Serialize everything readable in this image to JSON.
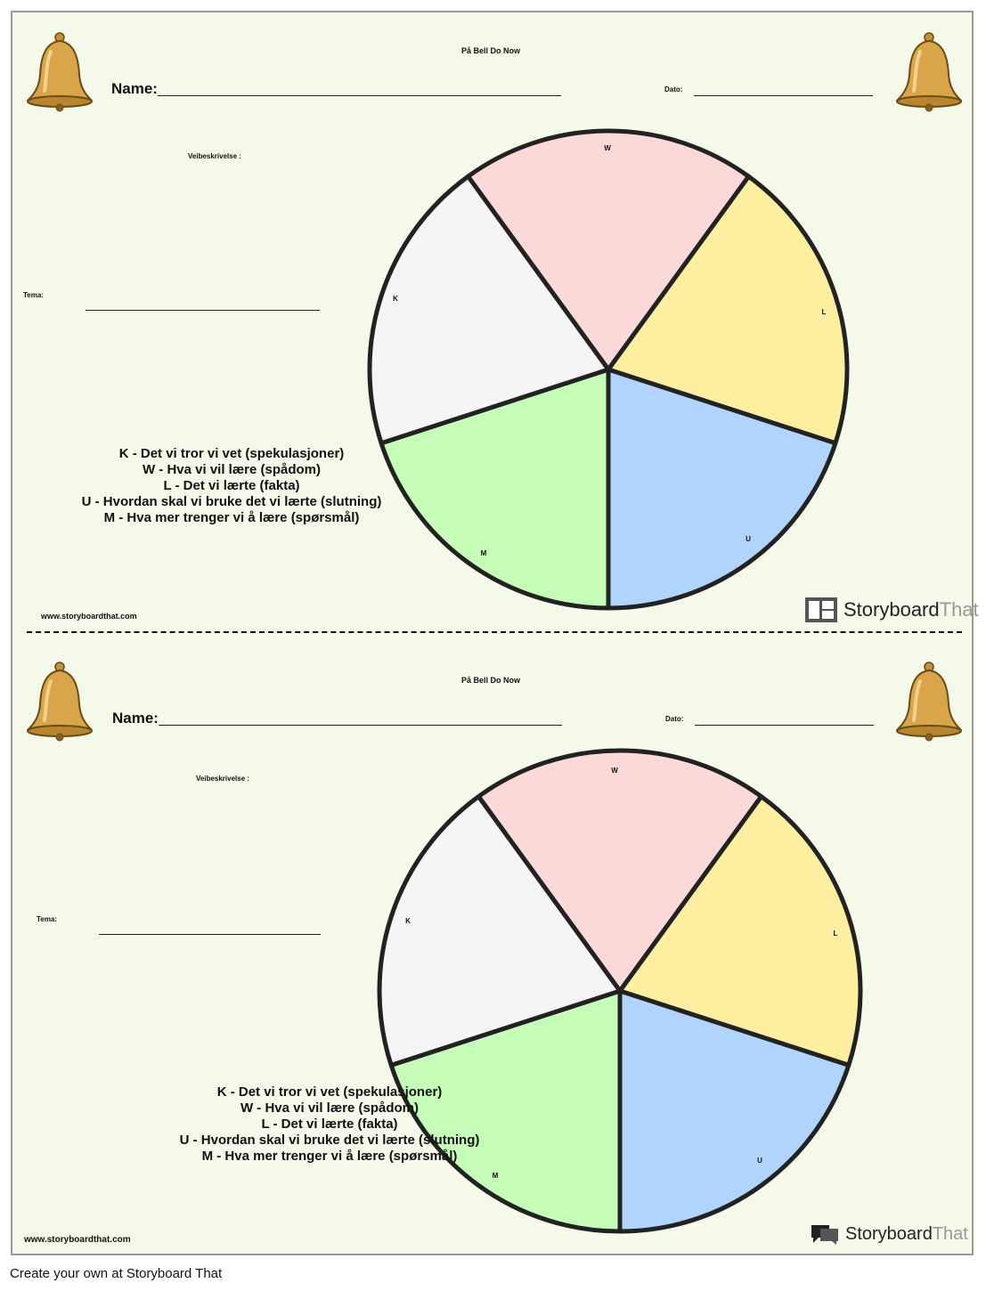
{
  "worksheets": [
    {
      "title": "På Bell Do Now",
      "name_label": "Name:",
      "date_label": "Dato:",
      "veibeskrivelse_label": "Veibeskrivelse :",
      "tema_label": "Tema:",
      "segments": [
        {
          "letter": "W",
          "color": "#fbd9d9"
        },
        {
          "letter": "L",
          "color": "#fdeea0"
        },
        {
          "letter": "U",
          "color": "#b0d4fc"
        },
        {
          "letter": "M",
          "color": "#c5fdb8"
        },
        {
          "letter": "K",
          "color": "#f5f5f5"
        }
      ],
      "legend": [
        "K - Det vi tror vi vet (spekulasjoner)",
        "W - Hva vi vil lære (spådom)",
        "L - Det vi lærte (fakta)",
        "U - Hvordan skal vi bruke det vi lærte (slutning)",
        "M - Hva mer trenger vi å lære (spørsmål)"
      ],
      "website": "www.storyboardthat.com",
      "brand": {
        "name_a": "Storyboard",
        "name_b": "That"
      }
    },
    {
      "title": "På Bell Do Now",
      "name_label": "Name:",
      "date_label": "Dato:",
      "veibeskrivelse_label": "Veibeskrivelse :",
      "tema_label": "Tema:",
      "segments": [
        {
          "letter": "W",
          "color": "#fbd9d9"
        },
        {
          "letter": "L",
          "color": "#fdeea0"
        },
        {
          "letter": "U",
          "color": "#b0d4fc"
        },
        {
          "letter": "M",
          "color": "#c5fdb8"
        },
        {
          "letter": "K",
          "color": "#f5f5f5"
        }
      ],
      "legend": [
        "K - Det vi tror vi vet (spekulasjoner)",
        "W - Hva vi vil lære (spådom)",
        "L - Det vi lærte (fakta)",
        "U - Hvordan skal vi bruke det vi lærte (slutning)",
        "M - Hva mer trenger vi å lære (spørsmål)"
      ],
      "website": "www.storyboardthat.com",
      "brand": {
        "name_a": "Storyboard",
        "name_b": "That"
      }
    }
  ],
  "footer": "Create your own at Storyboard That",
  "icons": [
    "bell-icon",
    "storyboardthat-logo-icon"
  ]
}
